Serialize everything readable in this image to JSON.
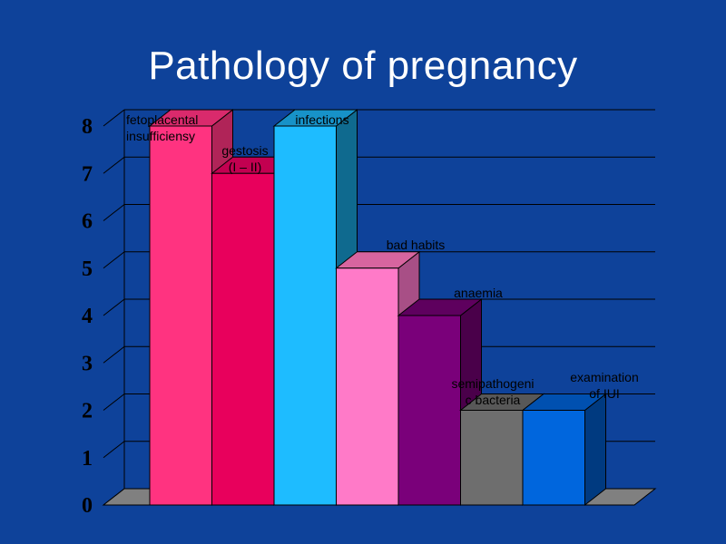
{
  "title": "Pathology of pregnancy",
  "chart_data": {
    "type": "bar",
    "title": "Pathology of pregnancy",
    "categories": [
      "fetoplacental insufficiensy",
      "gestosis (I – II)",
      "infections",
      "bad habits",
      "anaemia",
      "semipathogenic bacteria",
      "examination of IUI"
    ],
    "values": [
      8,
      7,
      8,
      5,
      4,
      2,
      2
    ],
    "labels": [
      [
        "fetoplacental",
        "insufficiensy"
      ],
      [
        "gestosis",
        "(I – II)"
      ],
      [
        "infections"
      ],
      [
        "bad habits"
      ],
      [
        "anaemia"
      ],
      [
        "semipathogeni",
        "c bacteria"
      ],
      [
        "examination",
        "of IUI"
      ]
    ],
    "colors": [
      "#ff3380",
      "#e8005c",
      "#1ebcff",
      "#ff7ac8",
      "#7a007a",
      "#6e6e6e",
      "#0066dd"
    ],
    "side_colors": [
      "#b02458",
      "#9e0040",
      "#0f6a8f",
      "#a84f86",
      "#4a004a",
      "#4a4a4a",
      "#003a80"
    ],
    "top_colors": [
      "#d92a6c",
      "#c20050",
      "#1792c8",
      "#d7659f",
      "#5e005e",
      "#585858",
      "#0050b0"
    ],
    "ylim": [
      0,
      8
    ],
    "yticks": [
      "0",
      "1",
      "2",
      "3",
      "4",
      "5",
      "6",
      "7",
      "8"
    ],
    "grid": true
  }
}
